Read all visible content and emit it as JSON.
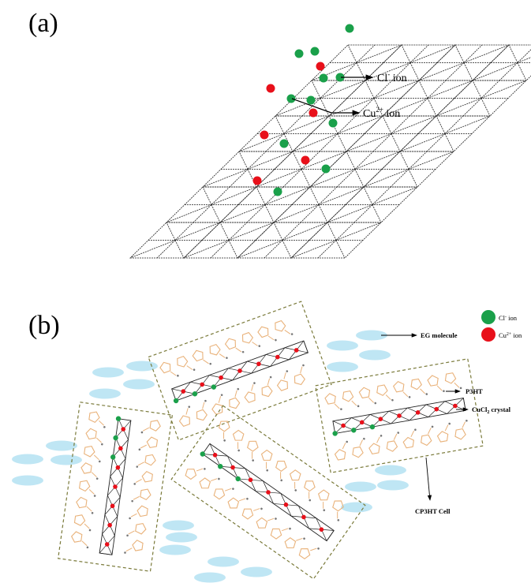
{
  "panel_a": {
    "label": "(a)",
    "cl_label_main": "Cl",
    "cl_label_sup": "-",
    "cl_label_rest": " ion",
    "cu_label_main": "Cu",
    "cu_label_sup": "2+",
    "cu_label_rest": " ion"
  },
  "panel_b": {
    "label": "(b)",
    "legend": {
      "cl_main": "Cl",
      "cl_sup": "-",
      "cl_rest": " ion",
      "cu_main": "Cu",
      "cu_sup": "2+",
      "cu_rest": " ion"
    },
    "callouts": {
      "eg": "EG molecule",
      "p3ht": "P3HT",
      "cucl2_main": "CuCl",
      "cucl2_sub": "2",
      "cucl2_rest": " crystal",
      "cell": "CP3HT Cell"
    }
  },
  "colors": {
    "cl_ion": "#1aa04a",
    "cu_ion": "#e8101a",
    "p3ht_ring": "#e9b27a",
    "eg_molecule": "#bfe6f4",
    "cell_border": "#7a7a3a",
    "lattice": "#222222"
  }
}
